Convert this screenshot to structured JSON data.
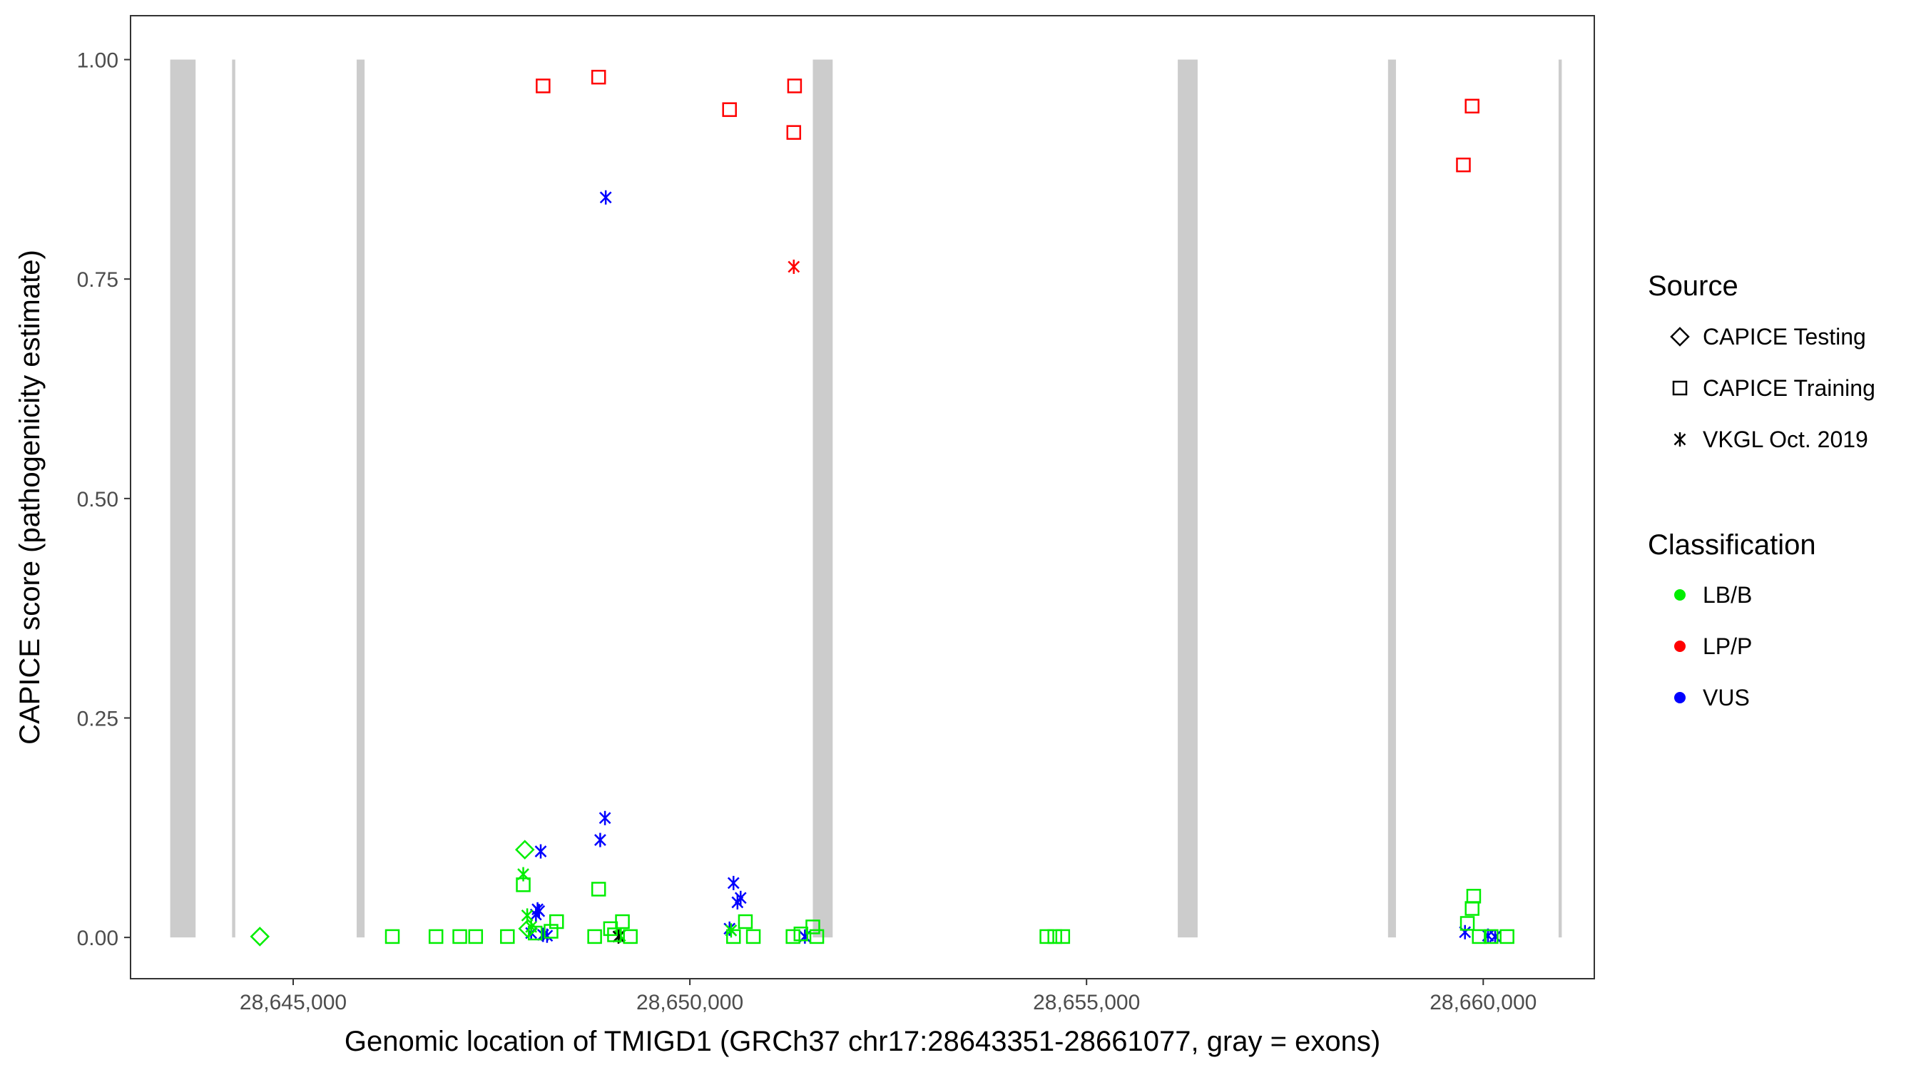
{
  "chart_data": {
    "type": "scatter",
    "title": "",
    "xlabel": "Genomic location of TMIGD1 (GRCh37 chr17:28643351-28661077, gray = exons)",
    "ylabel": "CAPICE score (pathogenicity estimate)",
    "xlim": [
      28642950,
      28661400
    ],
    "ylim": [
      -0.047,
      1.05
    ],
    "x_ticks": [
      28645000,
      28650000,
      28655000,
      28660000
    ],
    "x_tick_labels": [
      "28,645,000",
      "28,650,000",
      "28,655,000",
      "28,660,000"
    ],
    "y_ticks": [
      0,
      0.25,
      0.5,
      0.75,
      1.0
    ],
    "y_tick_labels": [
      "0.00",
      "0.25",
      "0.50",
      "0.75",
      "1.00"
    ],
    "exons": [
      {
        "start": 28643450,
        "end": 28643770
      },
      {
        "start": 28644230,
        "end": 28644270
      },
      {
        "start": 28645800,
        "end": 28645900
      },
      {
        "start": 28651550,
        "end": 28651800
      },
      {
        "start": 28656150,
        "end": 28656400
      },
      {
        "start": 28658800,
        "end": 28658900
      },
      {
        "start": 28660950,
        "end": 28660990
      }
    ],
    "legend": {
      "source_title": "Source",
      "source_items": [
        {
          "label": "CAPICE Testing",
          "shape": "diamond"
        },
        {
          "label": "CAPICE Training",
          "shape": "square"
        },
        {
          "label": "VKGL Oct. 2019",
          "shape": "asterisk"
        }
      ],
      "class_title": "Classification",
      "class_items": [
        {
          "label": "LB/B",
          "color": "#00ee00"
        },
        {
          "label": "LP/P",
          "color": "#ff0000"
        },
        {
          "label": "VUS",
          "color": "#0000ff"
        }
      ]
    },
    "colors": {
      "LB/B": "#00ee00",
      "LP/P": "#ff0000",
      "VUS": "#0000ff"
    },
    "series": [
      {
        "name": "CAPICE Training LP/P",
        "shape": "square",
        "class": "LP/P",
        "points": [
          [
            28648150,
            0.97
          ],
          [
            28648850,
            0.98
          ],
          [
            28650500,
            0.943
          ],
          [
            28651320,
            0.97
          ],
          [
            28651310,
            0.917
          ],
          [
            28659750,
            0.88
          ],
          [
            28659860,
            0.947
          ]
        ]
      },
      {
        "name": "VKGL Oct. 2019 LP/P",
        "shape": "asterisk",
        "class": "LP/P",
        "points": [
          [
            28651310,
            0.764
          ]
        ]
      },
      {
        "name": "VKGL Oct. 2019 VUS",
        "shape": "asterisk",
        "class": "VUS",
        "points": [
          [
            28648940,
            0.843
          ],
          [
            28648930,
            0.136
          ],
          [
            28648870,
            0.111
          ],
          [
            28648120,
            0.098
          ],
          [
            28648080,
            0.032
          ],
          [
            28648060,
            0.026
          ],
          [
            28648100,
            0.03
          ],
          [
            28648000,
            0.005
          ],
          [
            28648150,
            0.003
          ],
          [
            28648200,
            0.002
          ],
          [
            28650550,
            0.062
          ],
          [
            28650640,
            0.045
          ],
          [
            28650600,
            0.04
          ],
          [
            28650500,
            0.01
          ],
          [
            28651450,
            0.001
          ],
          [
            28659770,
            0.006
          ],
          [
            28660060,
            0.002
          ],
          [
            28660150,
            0.001
          ]
        ]
      },
      {
        "name": "VKGL Oct. 2019 LB/B",
        "shape": "asterisk",
        "class": "LB/B",
        "points": [
          [
            28647900,
            0.072
          ],
          [
            28647950,
            0.025
          ],
          [
            28648000,
            0.012
          ],
          [
            28650520,
            0.008
          ],
          [
            28649120,
            0.002
          ]
        ]
      },
      {
        "name": "VKGL Oct. 2019 black",
        "shape": "asterisk",
        "class": "black",
        "points": [
          [
            28649100,
            0.001
          ]
        ]
      },
      {
        "name": "CAPICE Testing LB/B",
        "shape": "diamond",
        "class": "LB/B",
        "points": [
          [
            28644580,
            0.001
          ],
          [
            28647920,
            0.1
          ],
          [
            28647960,
            0.01
          ]
        ]
      },
      {
        "name": "CAPICE Training LB/B",
        "shape": "square",
        "class": "LB/B",
        "points": [
          [
            28646250,
            0.001
          ],
          [
            28646800,
            0.001
          ],
          [
            28647100,
            0.001
          ],
          [
            28647300,
            0.001
          ],
          [
            28647700,
            0.001
          ],
          [
            28647900,
            0.06
          ],
          [
            28648050,
            0.005
          ],
          [
            28648320,
            0.018
          ],
          [
            28648250,
            0.007
          ],
          [
            28648850,
            0.055
          ],
          [
            28648800,
            0.001
          ],
          [
            28649000,
            0.01
          ],
          [
            28649050,
            0.003
          ],
          [
            28649150,
            0.018
          ],
          [
            28649250,
            0.001
          ],
          [
            28650550,
            0.001
          ],
          [
            28650700,
            0.018
          ],
          [
            28650800,
            0.001
          ],
          [
            28651300,
            0.001
          ],
          [
            28651400,
            0.004
          ],
          [
            28651550,
            0.012
          ],
          [
            28651600,
            0.001
          ],
          [
            28654500,
            0.001
          ],
          [
            28654600,
            0.001
          ],
          [
            28654700,
            0.001
          ],
          [
            28659800,
            0.016
          ],
          [
            28659880,
            0.047
          ],
          [
            28659860,
            0.033
          ],
          [
            28659950,
            0.001
          ],
          [
            28660100,
            0.001
          ],
          [
            28660300,
            0.001
          ]
        ]
      }
    ]
  }
}
